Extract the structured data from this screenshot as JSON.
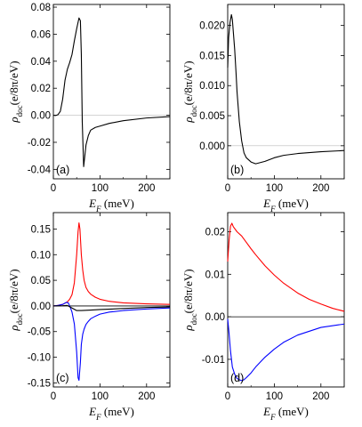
{
  "chart_data": [
    {
      "type": "line",
      "panel_label": "(a)",
      "xlabel": "E_F (meV)",
      "ylabel": "ρ_doc(e/8π/eV)",
      "xlim": [
        0,
        250
      ],
      "ylim": [
        -0.047,
        0.082
      ],
      "xticks": [
        "0",
        "100",
        "200"
      ],
      "yticks": [
        "0.08",
        "0.06",
        "0.04",
        "0.02",
        "0.00",
        "-0.02",
        "-0.04"
      ],
      "yticks_values": [
        0.08,
        0.06,
        0.04,
        0.02,
        0.0,
        -0.02,
        -0.04
      ],
      "zero_line": true,
      "series": [
        {
          "color": "#000000",
          "x": [
            0,
            5,
            10,
            15,
            20,
            25,
            30,
            35,
            40,
            45,
            50,
            55,
            58,
            60,
            62,
            65,
            70,
            75,
            80,
            90,
            100,
            120,
            150,
            200,
            250
          ],
          "values": [
            0.0,
            -0.0002,
            0.0005,
            0.003,
            0.012,
            0.026,
            0.034,
            0.039,
            0.045,
            0.055,
            0.064,
            0.072,
            0.07,
            0.045,
            -0.005,
            -0.038,
            -0.022,
            -0.015,
            -0.011,
            -0.009,
            -0.008,
            -0.006,
            -0.004,
            -0.002,
            -0.001
          ]
        }
      ]
    },
    {
      "type": "line",
      "panel_label": "(b)",
      "xlabel": "E_F (meV)",
      "ylabel": "ρ_doc(e/8π/eV)",
      "xlim": [
        0,
        250
      ],
      "ylim": [
        -0.0055,
        0.0235
      ],
      "xticks": [
        "0",
        "100",
        "200"
      ],
      "yticks": [
        "0.020",
        "0.015",
        "0.010",
        "0.005",
        "0.000"
      ],
      "yticks_values": [
        0.02,
        0.015,
        0.01,
        0.005,
        0.0
      ],
      "zero_line": true,
      "series": [
        {
          "color": "#000000",
          "x": [
            0,
            2,
            5,
            8,
            10,
            12,
            15,
            18,
            20,
            25,
            30,
            35,
            40,
            50,
            60,
            70,
            80,
            90,
            100,
            120,
            150,
            200,
            250
          ],
          "values": [
            0.013,
            0.018,
            0.0205,
            0.0218,
            0.021,
            0.019,
            0.016,
            0.012,
            0.009,
            0.004,
            0.0008,
            -0.0012,
            -0.002,
            -0.0027,
            -0.003,
            -0.0028,
            -0.0026,
            -0.0023,
            -0.002,
            -0.0016,
            -0.0013,
            -0.001,
            -0.0008
          ]
        }
      ]
    },
    {
      "type": "line",
      "panel_label": "(c)",
      "xlabel": "E_F (meV)",
      "ylabel": "ρ_doc(e/8π/eV)",
      "xlim": [
        0,
        250
      ],
      "ylim": [
        -0.158,
        0.182
      ],
      "xticks": [
        "0",
        "100",
        "200"
      ],
      "yticks": [
        "0.15",
        "0.10",
        "0.05",
        "0.00",
        "-0.05",
        "-0.10",
        "-0.15"
      ],
      "yticks_values": [
        0.15,
        0.1,
        0.05,
        0.0,
        -0.05,
        -0.1,
        -0.15
      ],
      "zero_line": true,
      "series": [
        {
          "color": "#ff0000",
          "x": [
            0,
            10,
            20,
            30,
            35,
            40,
            45,
            50,
            53,
            55,
            57,
            60,
            63,
            66,
            70,
            75,
            80,
            90,
            100,
            120,
            150,
            200,
            250
          ],
          "values": [
            0.0,
            0.001,
            0.003,
            0.008,
            0.013,
            0.022,
            0.045,
            0.1,
            0.145,
            0.162,
            0.15,
            0.1,
            0.07,
            0.05,
            0.036,
            0.028,
            0.023,
            0.017,
            0.013,
            0.009,
            0.006,
            0.004,
            0.003
          ]
        },
        {
          "color": "#0000ff",
          "x": [
            0,
            10,
            20,
            28,
            32,
            36,
            40,
            45,
            50,
            53,
            55,
            58,
            60,
            63,
            66,
            70,
            75,
            80,
            90,
            100,
            120,
            150,
            200,
            250
          ],
          "values": [
            0.0,
            0.001,
            0.003,
            0.007,
            0.006,
            -0.002,
            -0.012,
            -0.035,
            -0.09,
            -0.14,
            -0.145,
            -0.11,
            -0.075,
            -0.055,
            -0.045,
            -0.036,
            -0.03,
            -0.025,
            -0.02,
            -0.016,
            -0.012,
            -0.009,
            -0.006,
            -0.004
          ]
        },
        {
          "color": "#000000",
          "x": [
            0,
            20,
            30,
            40,
            50,
            60,
            80,
            100,
            150,
            200,
            250
          ],
          "values": [
            0.0,
            0.0005,
            0.001,
            -0.004,
            -0.009,
            -0.009,
            -0.008,
            -0.007,
            -0.005,
            -0.003,
            -0.002
          ]
        }
      ]
    },
    {
      "type": "line",
      "panel_label": "(d)",
      "xlabel": "E_F (meV)",
      "ylabel": "ρ_doc(e/8π/eV)",
      "xlim": [
        0,
        250
      ],
      "ylim": [
        -0.0165,
        0.0245
      ],
      "xticks": [
        "0",
        "100",
        "200"
      ],
      "yticks": [
        "0.02",
        "0.01",
        "0.00",
        "-0.01"
      ],
      "yticks_values": [
        0.02,
        0.01,
        0.0,
        -0.01
      ],
      "zero_line": true,
      "series": [
        {
          "color": "#ff0000",
          "x": [
            0,
            3,
            6,
            9,
            12,
            20,
            30,
            40,
            50,
            60,
            80,
            100,
            120,
            150,
            175,
            200,
            225,
            250
          ],
          "values": [
            0.013,
            0.018,
            0.0213,
            0.022,
            0.0212,
            0.02,
            0.019,
            0.0175,
            0.016,
            0.0146,
            0.012,
            0.0098,
            0.0079,
            0.0056,
            0.0041,
            0.003,
            0.002,
            0.0013
          ]
        },
        {
          "color": "#0000ff",
          "x": [
            0,
            3,
            6,
            10,
            15,
            20,
            25,
            30,
            35,
            40,
            50,
            60,
            80,
            100,
            120,
            150,
            200,
            250
          ],
          "values": [
            -0.0005,
            -0.004,
            -0.008,
            -0.0118,
            -0.0135,
            -0.0145,
            -0.0148,
            -0.015,
            -0.0148,
            -0.0143,
            -0.0132,
            -0.0118,
            -0.0095,
            -0.0076,
            -0.006,
            -0.0043,
            -0.0025,
            -0.0017
          ]
        }
      ]
    }
  ]
}
